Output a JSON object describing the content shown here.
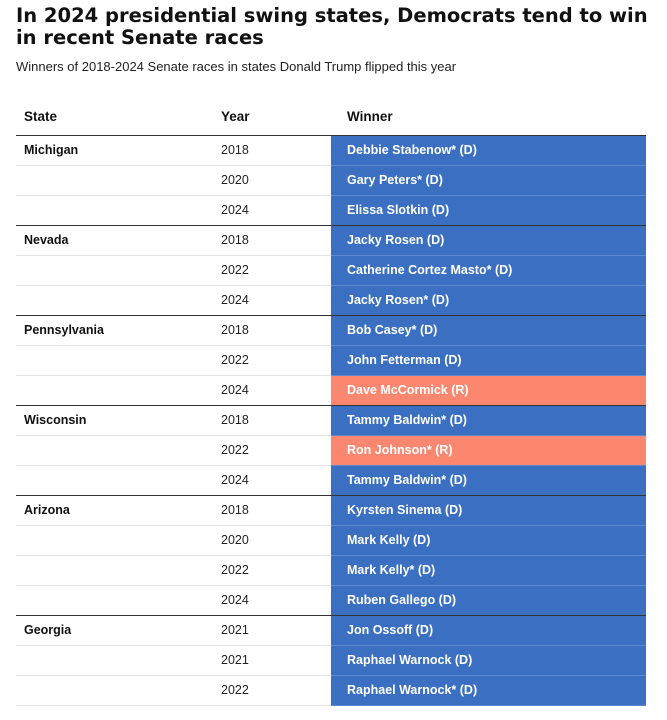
{
  "title": "In 2024 presidential swing states, Democrats tend to win in recent Senate races",
  "subtitle": "Winners of 2018-2024 Senate races in states Donald Trump flipped this year",
  "columns": {
    "state": "State",
    "year": "Year",
    "winner": "Winner"
  },
  "colors": {
    "democrat": "#3a6fc1",
    "republican": "#fb8771"
  },
  "rows": [
    {
      "state": "Michigan",
      "year": "2018",
      "winner": "Debbie Stabenow* (D)",
      "party": "D"
    },
    {
      "state": "",
      "year": "2020",
      "winner": "Gary Peters* (D)",
      "party": "D"
    },
    {
      "state": "",
      "year": "2024",
      "winner": "Elissa Slotkin (D)",
      "party": "D"
    },
    {
      "state": "Nevada",
      "year": "2018",
      "winner": "Jacky Rosen (D)",
      "party": "D"
    },
    {
      "state": "",
      "year": "2022",
      "winner": "Catherine Cortez Masto* (D)",
      "party": "D"
    },
    {
      "state": "",
      "year": "2024",
      "winner": "Jacky Rosen* (D)",
      "party": "D"
    },
    {
      "state": "Pennsylvania",
      "year": "2018",
      "winner": "Bob Casey* (D)",
      "party": "D"
    },
    {
      "state": "",
      "year": "2022",
      "winner": "John Fetterman (D)",
      "party": "D"
    },
    {
      "state": "",
      "year": "2024",
      "winner": "Dave McCormick (R)",
      "party": "R"
    },
    {
      "state": "Wisconsin",
      "year": "2018",
      "winner": "Tammy Baldwin* (D)",
      "party": "D"
    },
    {
      "state": "",
      "year": "2022",
      "winner": "Ron Johnson* (R)",
      "party": "R"
    },
    {
      "state": "",
      "year": "2024",
      "winner": "Tammy Baldwin* (D)",
      "party": "D"
    },
    {
      "state": "Arizona",
      "year": "2018",
      "winner": "Kyrsten Sinema (D)",
      "party": "D"
    },
    {
      "state": "",
      "year": "2020",
      "winner": "Mark Kelly (D)",
      "party": "D"
    },
    {
      "state": "",
      "year": "2022",
      "winner": "Mark Kelly* (D)",
      "party": "D"
    },
    {
      "state": "",
      "year": "2024",
      "winner": "Ruben Gallego (D)",
      "party": "D"
    },
    {
      "state": "Georgia",
      "year": "2021",
      "winner": "Jon Ossoff (D)",
      "party": "D"
    },
    {
      "state": "",
      "year": "2021",
      "winner": "Raphael Warnock (D)",
      "party": "D"
    },
    {
      "state": "",
      "year": "2022",
      "winner": "Raphael Warnock* (D)",
      "party": "D"
    }
  ]
}
